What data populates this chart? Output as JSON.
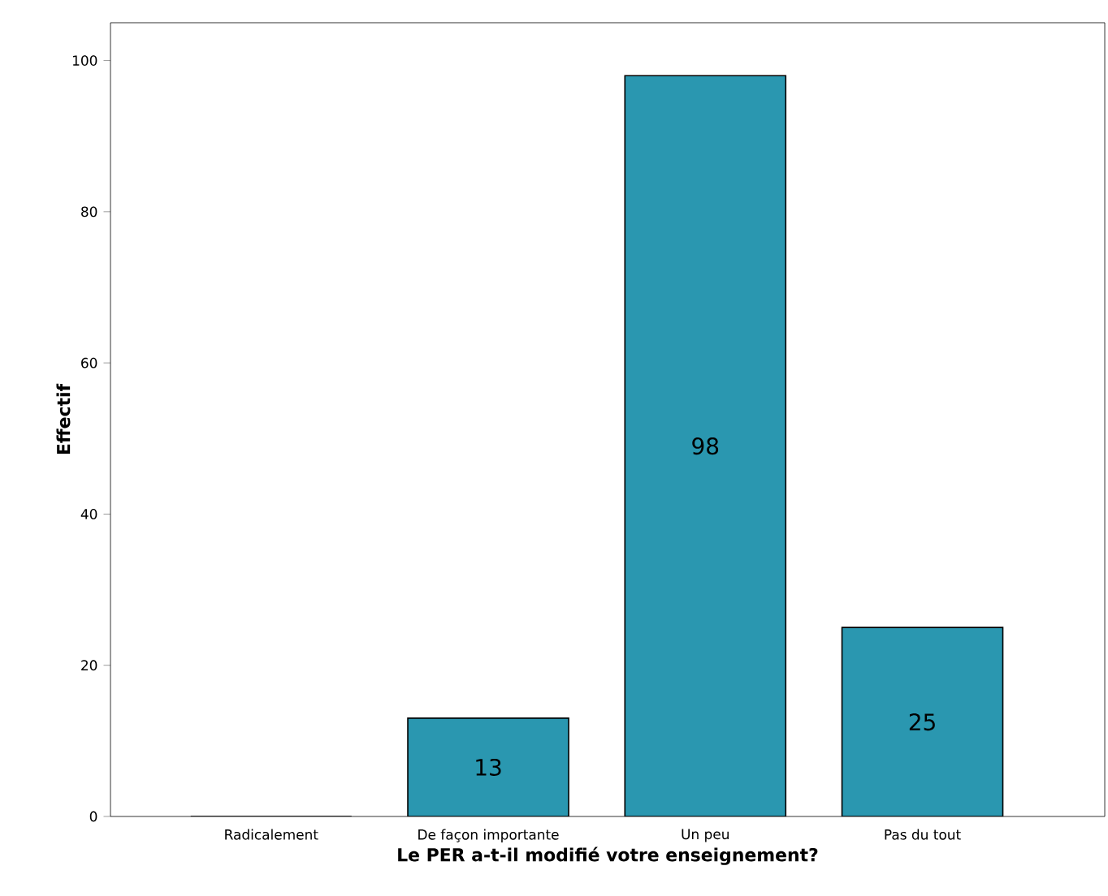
{
  "chart_data": {
    "type": "bar",
    "xlabel": "Le PER a-t-il modifié votre enseignement?",
    "ylabel": "Effectif",
    "categories": [
      "Radicalement",
      "De façon importante",
      "Un peu",
      "Pas du tout"
    ],
    "values": [
      0,
      13,
      98,
      25
    ],
    "value_labels": [
      null,
      "13",
      "98",
      "25"
    ],
    "color": "#2a97b0",
    "ylim": [
      0,
      105
    ],
    "yticks": [
      0,
      20,
      40,
      60,
      80,
      100
    ],
    "grid": false
  }
}
